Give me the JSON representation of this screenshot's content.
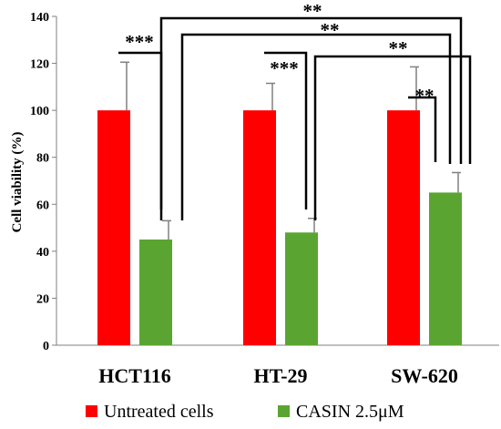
{
  "chart_data": {
    "type": "bar",
    "title": "",
    "xlabel": "",
    "ylabel": "Cell viability (%)",
    "ylim": [
      0,
      140
    ],
    "yticks": [
      0,
      20,
      40,
      60,
      80,
      100,
      120,
      140
    ],
    "grid": false,
    "legend_position": "bottom",
    "categories": [
      "HCT116",
      "HT-29",
      "SW-620"
    ],
    "series": [
      {
        "name": "Untreated cells",
        "color": "#ff0000",
        "values": [
          100,
          100,
          100
        ],
        "errors": [
          20.5,
          11.5,
          18.5
        ]
      },
      {
        "name": "CASIN 2.5μM",
        "color": "#5aa532",
        "values": [
          45,
          48,
          65
        ],
        "errors": [
          8,
          6,
          8.5
        ]
      }
    ],
    "significance": [
      {
        "label": "***",
        "from": {
          "category": 0,
          "series": 0
        },
        "to": {
          "category": 0,
          "series": 1
        }
      },
      {
        "label": "***",
        "from": {
          "category": 1,
          "series": 0
        },
        "to": {
          "category": 1,
          "series": 1
        }
      },
      {
        "label": "**",
        "from": {
          "category": 2,
          "series": 0
        },
        "to": {
          "category": 2,
          "series": 1
        }
      },
      {
        "label": "**",
        "from": {
          "category": 0,
          "series": 1
        },
        "to": {
          "category": 2,
          "series": 1
        }
      },
      {
        "label": "**",
        "from": {
          "category": 0,
          "series": 1
        },
        "to": {
          "category": 2,
          "series": 1
        }
      },
      {
        "label": "**",
        "from": {
          "category": 1,
          "series": 1
        },
        "to": {
          "category": 2,
          "series": 1
        }
      }
    ]
  }
}
